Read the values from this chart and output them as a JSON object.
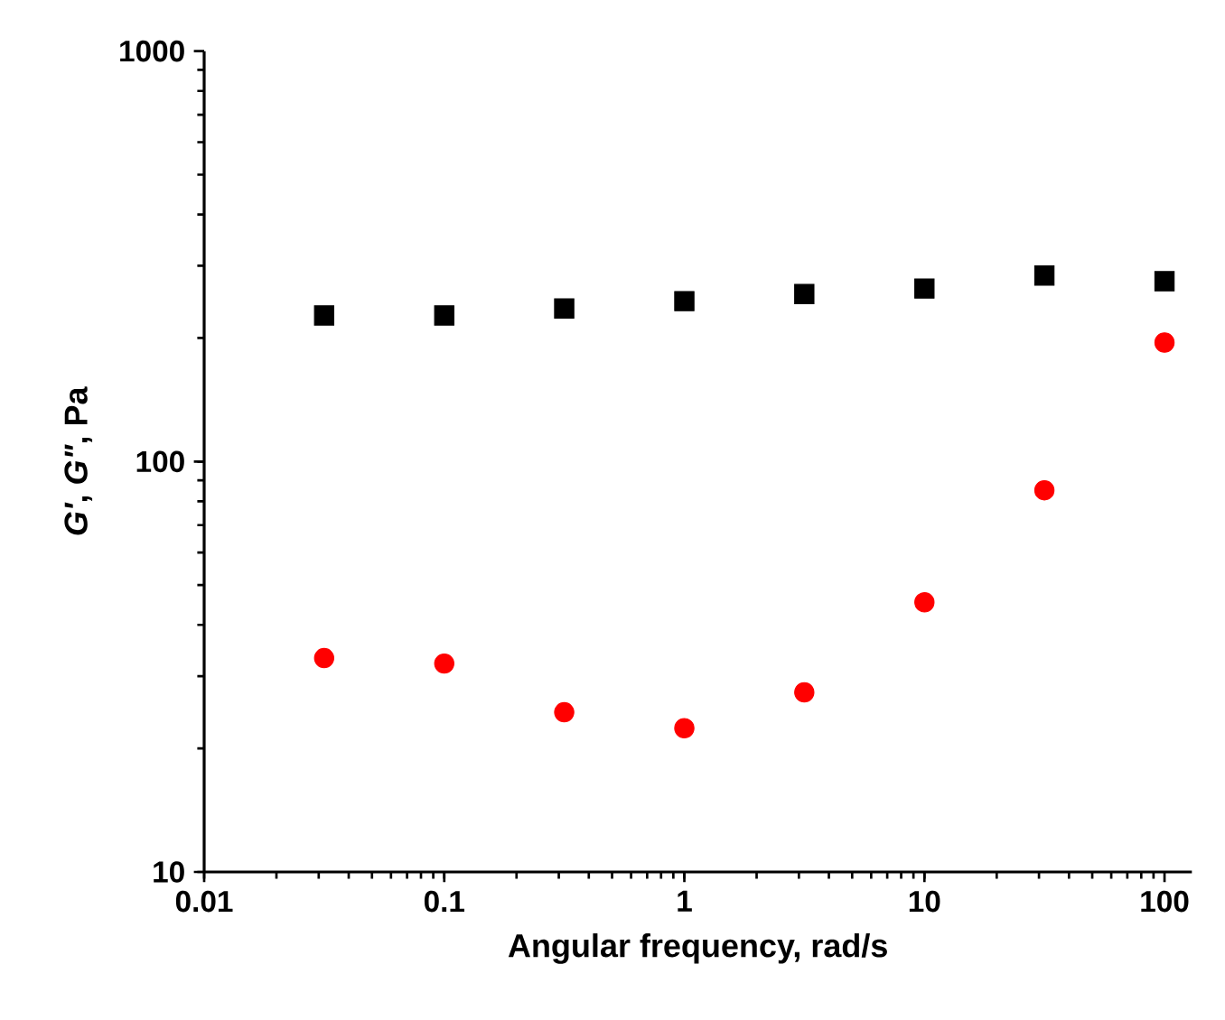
{
  "chart_data": {
    "type": "scatter",
    "xlabel": "Angular frequency, rad/s",
    "ylabel": "*G'*, *G\"*, Pa",
    "log": "xy",
    "grid": false,
    "xlim": [
      0.01,
      130
    ],
    "xticks": [
      0.01,
      0.1,
      1,
      10,
      100
    ],
    "ylim": [
      10,
      1000
    ],
    "yticks": [
      10,
      100,
      1000
    ],
    "series": [
      {
        "color": "#000000",
        "marker": "square",
        "x": [
          0.0316,
          0.1,
          0.316,
          1,
          3.16,
          10,
          31.6,
          100
        ],
        "values": [
          227,
          227,
          236,
          246,
          256,
          264,
          284,
          275
        ]
      },
      {
        "color": "#ff0000",
        "marker": "circle",
        "x": [
          0.0316,
          0.1,
          0.316,
          1,
          3.16,
          10,
          31.6,
          100
        ],
        "values": [
          33.2,
          32.2,
          24.5,
          22.4,
          27.4,
          45.4,
          85.1,
          195
        ]
      }
    ]
  }
}
